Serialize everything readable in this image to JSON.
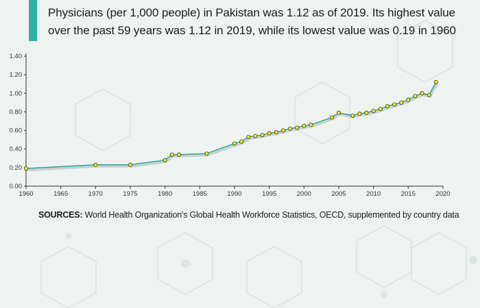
{
  "headline": "Physicians (per 1,000 people) in Pakistan was 1.12 as of 2019. Its highest value over the past 59 years was 1.12 in 2019, while its lowest value was 0.19 in 1960",
  "sources": {
    "label": "SOURCES:",
    "text": "World Health Organization's Global Health Workforce Statistics, OECD, supplemented by country data"
  },
  "colors": {
    "line": "#2aa89b",
    "marker_fill": "#f2ec2a",
    "marker_stroke": "#3a3a10",
    "accent": "#2ab3a6",
    "background": "#eef2f1"
  },
  "chart_data": {
    "type": "line",
    "title": "",
    "xlabel": "",
    "ylabel": "",
    "xlim": [
      1960,
      2020
    ],
    "ylim": [
      0,
      1.4
    ],
    "grid": false,
    "x_ticks": [
      "1960",
      "1965",
      "1970",
      "1975",
      "1980",
      "1985",
      "1990",
      "1995",
      "2000",
      "2005",
      "2010",
      "2015",
      "2020"
    ],
    "y_ticks": [
      "0.00",
      "0.20",
      "0.40",
      "0.60",
      "0.80",
      "1.00",
      "1.20",
      "1.40"
    ],
    "series": [
      {
        "x": [
          1960,
          1970,
          1975,
          1980,
          1981,
          1982,
          1986,
          1990,
          1991,
          1992,
          1993,
          1994,
          1995,
          1996,
          1997,
          1998,
          1999,
          2000,
          2001,
          2004,
          2005,
          2007,
          2008,
          2009,
          2010,
          2011,
          2012,
          2013,
          2014,
          2015,
          2016,
          2017,
          2018,
          2019
        ],
        "y": [
          0.19,
          0.23,
          0.23,
          0.28,
          0.34,
          0.34,
          0.35,
          0.46,
          0.48,
          0.53,
          0.54,
          0.55,
          0.57,
          0.58,
          0.6,
          0.62,
          0.63,
          0.65,
          0.66,
          0.74,
          0.79,
          0.76,
          0.78,
          0.79,
          0.81,
          0.83,
          0.86,
          0.88,
          0.9,
          0.93,
          0.97,
          1.0,
          0.98,
          1.12
        ]
      }
    ]
  }
}
